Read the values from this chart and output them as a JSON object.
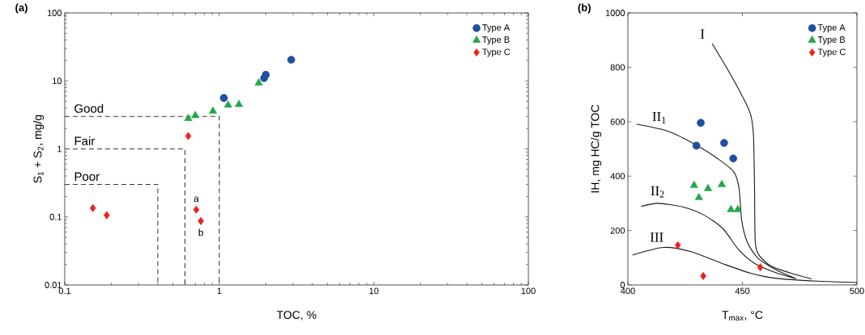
{
  "chart_data": [
    {
      "type": "scatter",
      "title": "(a)",
      "xlabel": "TOC, %",
      "ylabel": "S$_{1}$ + S$_{2}$, mg/g",
      "log": "xy",
      "xlim": [
        0.1,
        100
      ],
      "ylim": [
        0.01,
        100
      ],
      "xticks": [
        0.1,
        1,
        10,
        100
      ],
      "yticks": [
        0.01,
        0.1,
        1,
        10,
        100
      ],
      "legend": "top right",
      "series": [
        {
          "name": "Type A",
          "color": "#1f4ea3",
          "marker": "circle",
          "x": [
            1.07,
            1.95,
            2.0,
            2.92
          ],
          "values": [
            5.6,
            11,
            12.3,
            20.5
          ]
        },
        {
          "name": "Type B",
          "color": "#22a84a",
          "marker": "triangle",
          "x": [
            0.63,
            0.7,
            0.91,
            1.14,
            1.34,
            1.8
          ],
          "values": [
            2.8,
            3.1,
            3.6,
            4.4,
            4.5,
            9.3
          ]
        },
        {
          "name": "Type C",
          "color": "#e8231e",
          "marker": "diamond",
          "x": [
            0.152,
            0.187,
            0.63,
            0.71,
            0.76
          ],
          "values": [
            0.135,
            0.106,
            1.55,
            0.128,
            0.087
          ]
        },
        {
          "type": "line",
          "color": "#3c3c3c",
          "marker": "none",
          "line_style": "dashed",
          "x": [
            0.1,
            1,
            1
          ],
          "values": [
            3,
            3,
            0.01
          ]
        },
        {
          "type": "line",
          "color": "#3c3c3c",
          "marker": "none",
          "line_style": "dashed",
          "x": [
            0.1,
            0.6,
            0.6
          ],
          "values": [
            1,
            1,
            0.01
          ]
        },
        {
          "type": "line",
          "color": "#3c3c3c",
          "marker": "none",
          "line_style": "dashed",
          "x": [
            0.1,
            0.4,
            0.4
          ],
          "values": [
            0.3,
            0.3,
            0.01
          ]
        }
      ],
      "annotations": [
        "Good",
        "Fair",
        "Poor",
        {
          "text": "a",
          "x": 0.71,
          "y": 0.128
        },
        {
          "text": "b",
          "x": 0.76,
          "y": 0.087
        }
      ]
    },
    {
      "type": "scatter",
      "title": "(b)",
      "xlabel": "T$_{max}$, °C",
      "ylabel": "IH, mg HC/g TOC",
      "xlim": [
        400,
        500
      ],
      "ylim": [
        0,
        1000
      ],
      "xticks": [
        400,
        450,
        500
      ],
      "yticks": [
        0,
        200,
        400,
        600,
        800,
        1000
      ],
      "legend": "top right",
      "series": [
        {
          "name": "Type A",
          "color": "#1f4ea3",
          "marker": "circle",
          "x": [
            431.8,
            429.9,
            442,
            446
          ],
          "values": [
            596,
            512,
            522,
            465
          ]
        },
        {
          "name": "Type B",
          "color": "#22a84a",
          "marker": "triangle",
          "x": [
            428.9,
            431,
            435,
            441,
            445,
            448
          ],
          "values": [
            366,
            321,
            354,
            369,
            277,
            277
          ]
        },
        {
          "name": "Type C",
          "color": "#e8231e",
          "marker": "diamond",
          "x": [
            421.8,
            432.9,
            457.8
          ],
          "values": [
            146,
            33,
            65
          ]
        },
        {
          "type": "line",
          "color": "#1a1a1a",
          "marker": "none",
          "line_style": "solid",
          "x": [
            436.8,
            446.2,
            453.3,
            454.8,
            455.3,
            455.6,
            457.4,
            462.7,
            471,
            480.2
          ],
          "values": [
            887,
            753,
            634,
            554,
            357,
            158,
            108,
            68,
            44,
            22
          ]
        },
        {
          "type": "line",
          "color": "#1a1a1a",
          "marker": "none",
          "line_style": "solid",
          "x": [
            403.8,
            417.9,
            429.7,
            439.1,
            446.2,
            448.5,
            449.7,
            452.1,
            456.8,
            465,
            473.3
          ],
          "values": [
            591,
            564,
            515,
            465,
            416,
            357,
            237,
            158,
            98,
            54,
            24
          ]
        },
        {
          "type": "line",
          "color": "#1a1a1a",
          "marker": "none",
          "line_style": "solid",
          "x": [
            405.9,
            413.2,
            423.8,
            433.2,
            441.5,
            448.5,
            455.6,
            465,
            473.3
          ],
          "values": [
            289,
            300,
            287,
            257,
            207,
            128,
            78,
            44,
            24
          ]
        },
        {
          "type": "line",
          "color": "#1a1a1a",
          "marker": "none",
          "line_style": "solid",
          "x": [
            402,
            415.5,
            427.3,
            441.5,
            453.3,
            465,
            482.7,
            500
          ],
          "values": [
            110,
            138,
            123,
            78,
            44,
            24,
            14,
            9
          ]
        }
      ],
      "annotations": [
        {
          "text": "I",
          "x": 436.8,
          "y": 887
        },
        {
          "text": "II$_{1}$",
          "x": 403.8,
          "y": 591
        },
        {
          "text": "II$_{2}$",
          "x": 405.9,
          "y": 289
        },
        {
          "text": "III",
          "x": 402,
          "y": 110
        }
      ]
    }
  ]
}
